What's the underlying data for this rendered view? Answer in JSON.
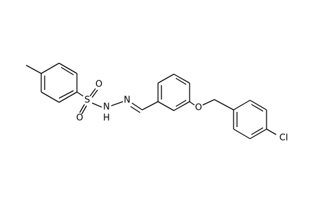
{
  "atoms": [
    "S",
    "O",
    "O",
    "N",
    "H",
    "N",
    "O",
    "Cl"
  ]
}
